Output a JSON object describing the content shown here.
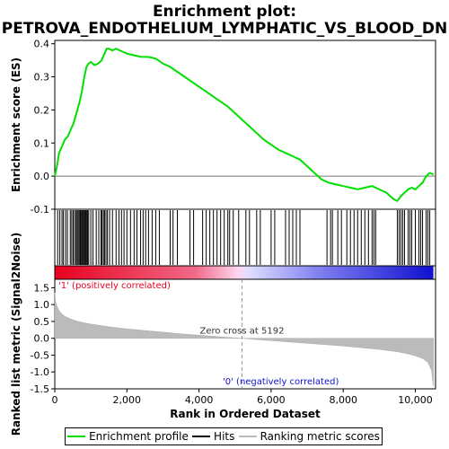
{
  "title": {
    "line1": "Enrichment plot:",
    "line2": "PETROVA_ENDOTHELIUM_LYMPHATIC_VS_BLOOD_DN"
  },
  "chart_data": {
    "type": "line",
    "es_panel": {
      "ylabel": "Enrichment score (ES)",
      "ylim": [
        -0.1,
        0.41
      ],
      "yticks": [
        "-0.1",
        "0.0",
        "0.1",
        "0.2",
        "0.3",
        "0.4"
      ],
      "ytick_values": [
        -0.1,
        0.0,
        0.1,
        0.2,
        0.3,
        0.4
      ],
      "series": [
        {
          "name": "Enrichment profile",
          "color": "#00e000",
          "x": [
            0,
            60,
            120,
            200,
            280,
            360,
            440,
            520,
            600,
            680,
            760,
            820,
            880,
            940,
            1000,
            1100,
            1200,
            1300,
            1380,
            1440,
            1500,
            1600,
            1700,
            1800,
            1900,
            2000,
            2200,
            2400,
            2600,
            2800,
            3000,
            3200,
            3400,
            3600,
            3800,
            4000,
            4200,
            4400,
            4600,
            4800,
            5000,
            5200,
            5400,
            5600,
            5800,
            6000,
            6200,
            6400,
            6600,
            6800,
            7000,
            7200,
            7400,
            7600,
            7800,
            8000,
            8200,
            8400,
            8600,
            8800,
            9000,
            9200,
            9400,
            9500,
            9600,
            9700,
            9800,
            9900,
            10000,
            10100,
            10200,
            10300,
            10400,
            10500
          ],
          "y": [
            0.0,
            0.03,
            0.07,
            0.09,
            0.11,
            0.12,
            0.14,
            0.16,
            0.19,
            0.22,
            0.26,
            0.3,
            0.33,
            0.34,
            0.345,
            0.335,
            0.34,
            0.35,
            0.37,
            0.385,
            0.385,
            0.38,
            0.385,
            0.38,
            0.375,
            0.37,
            0.365,
            0.36,
            0.36,
            0.355,
            0.34,
            0.33,
            0.315,
            0.3,
            0.285,
            0.27,
            0.255,
            0.24,
            0.225,
            0.21,
            0.19,
            0.17,
            0.15,
            0.13,
            0.11,
            0.095,
            0.08,
            0.07,
            0.06,
            0.05,
            0.03,
            0.01,
            -0.01,
            -0.02,
            -0.025,
            -0.03,
            -0.035,
            -0.04,
            -0.035,
            -0.03,
            -0.04,
            -0.05,
            -0.07,
            -0.075,
            -0.06,
            -0.05,
            -0.04,
            -0.035,
            -0.04,
            -0.03,
            -0.02,
            0.0,
            0.01,
            0.005
          ]
        }
      ]
    },
    "hits_panel": {
      "legend_label": "Hits",
      "hit_positions": [
        80,
        140,
        200,
        240,
        300,
        350,
        430,
        470,
        510,
        550,
        590,
        620,
        650,
        680,
        710,
        740,
        760,
        790,
        810,
        830,
        860,
        880,
        910,
        940,
        1000,
        1060,
        1150,
        1220,
        1280,
        1310,
        1350,
        1380,
        1420,
        1460,
        1520,
        1600,
        1700,
        1780,
        1850,
        1920,
        2000,
        2100,
        2200,
        2280,
        2380,
        2450,
        2520,
        2600,
        2700,
        2800,
        2900,
        3200,
        3280,
        3400,
        3750,
        3850,
        4100,
        4200,
        4300,
        4400,
        4500,
        4600,
        4700,
        4800,
        4850,
        4950,
        5100,
        5300,
        5400,
        5600,
        5700,
        6000,
        6100,
        6400,
        6500,
        6600,
        6700,
        6800,
        7550,
        7650,
        7700,
        7850,
        7950,
        8100,
        8200,
        8300,
        8400,
        8500,
        8600,
        8700,
        8800,
        8850,
        8900,
        9500,
        9550,
        9600,
        9650,
        9700,
        9800,
        9850,
        9900,
        10000,
        10100,
        10150,
        10200,
        10300,
        10350,
        10400
      ]
    },
    "gradient_bar": {
      "label_pos": "'1' (positively correlated)",
      "label_neg": "'0' (negatively correlated)",
      "color_pos": "#e8001e",
      "color_neg": "#1010d0"
    },
    "metric_panel": {
      "ylabel": "Ranked list metric (Signal2Noise)",
      "xlabel": "Rank in Ordered Dataset",
      "legend_label": "Ranking metric scores",
      "ylim": [
        -1.5,
        1.75
      ],
      "yticks": [
        "-1.5",
        "-1.0",
        "-0.5",
        "0.0",
        "0.5",
        "1.0",
        "1.5"
      ],
      "ytick_values": [
        -1.5,
        -1.0,
        -0.5,
        0.0,
        0.5,
        1.0,
        1.5
      ],
      "xlim": [
        0,
        10560
      ],
      "xticks": [
        "0",
        "2,000",
        "4,000",
        "6,000",
        "8,000",
        "10,000"
      ],
      "xtick_values": [
        0,
        2000,
        4000,
        6000,
        8000,
        10000
      ],
      "zero_cross_label": "Zero cross at 5192",
      "zero_cross": 5192,
      "x": [
        0,
        20,
        60,
        120,
        200,
        300,
        450,
        600,
        800,
        1000,
        1500,
        2000,
        2500,
        3000,
        3500,
        4000,
        4500,
        5000,
        5192,
        5500,
        6000,
        6500,
        7000,
        7500,
        8000,
        8500,
        9000,
        9500,
        9800,
        10000,
        10200,
        10350,
        10450,
        10500
      ],
      "y": [
        1.35,
        1.1,
        0.95,
        0.82,
        0.72,
        0.64,
        0.57,
        0.51,
        0.46,
        0.42,
        0.34,
        0.28,
        0.23,
        0.18,
        0.13,
        0.09,
        0.05,
        0.01,
        0.0,
        -0.03,
        -0.07,
        -0.11,
        -0.15,
        -0.19,
        -0.23,
        -0.28,
        -0.33,
        -0.4,
        -0.46,
        -0.52,
        -0.6,
        -0.72,
        -0.95,
        -1.42
      ]
    }
  },
  "legend": {
    "enrichment_label": "Enrichment profile",
    "hits_label": "Hits",
    "metric_label": "Ranking metric scores",
    "enrichment_color": "#00e000",
    "hits_color": "#000000",
    "metric_color": "#bbbbbb"
  }
}
